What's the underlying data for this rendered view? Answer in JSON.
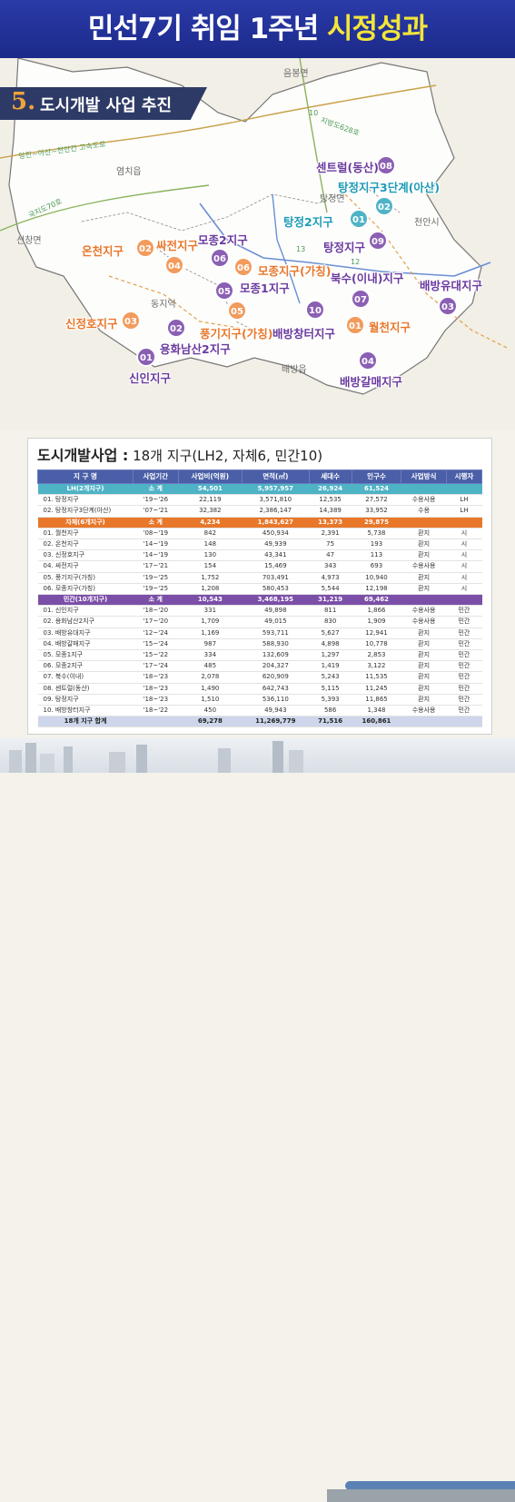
{
  "banner": {
    "title_part1": "민선7기 취임 1주년 ",
    "title_part2": "시정성과"
  },
  "section": {
    "number": "5.",
    "title": "도시개발 사업 추진"
  },
  "map": {
    "places": [
      "음봉면",
      "염치읍",
      "탕정면",
      "천안시",
      "신창면",
      "동지역",
      "배방읍"
    ],
    "roads": [
      "당진~아산~천안간 고속도로",
      "지방도628호",
      "국지도70호",
      "12",
      "13",
      "10"
    ],
    "markers": [
      {
        "num": "08",
        "label": "센트럴(동산)",
        "color": "p"
      },
      {
        "num": "02",
        "label": "탕정지구3단계(아산)",
        "color": "t"
      },
      {
        "num": "01",
        "label": "탕정2지구",
        "color": "t"
      },
      {
        "num": "09",
        "label": "탕정지구",
        "color": "p"
      },
      {
        "num": "02",
        "label": "온천지구",
        "color": "o"
      },
      {
        "num": "04",
        "label": "싸전지구",
        "color": "o"
      },
      {
        "num": "06",
        "label": "모종2지구",
        "color": "p"
      },
      {
        "num": "06",
        "label": "모종지구(가칭)",
        "color": "o"
      },
      {
        "num": "05",
        "label": "모종1지구",
        "color": "p"
      },
      {
        "num": "07",
        "label": "북수(이내)지구",
        "color": "p"
      },
      {
        "num": "03",
        "label": "배방유대지구",
        "color": "p"
      },
      {
        "num": "05",
        "label": "풍기지구(가칭)",
        "color": "o"
      },
      {
        "num": "10",
        "label": "배방창터지구",
        "color": "p"
      },
      {
        "num": "01",
        "label": "월천지구",
        "color": "o"
      },
      {
        "num": "03",
        "label": "신정호지구",
        "color": "o"
      },
      {
        "num": "02",
        "label": "용화남산2지구",
        "color": "p"
      },
      {
        "num": "01",
        "label": "신인지구",
        "color": "p"
      },
      {
        "num": "04",
        "label": "배방갈매지구",
        "color": "p"
      }
    ]
  },
  "panel": {
    "title_bold": "도시개발사업 :",
    "title_rest": " 18개 지구(LH2, 자체6, 민간10)"
  },
  "table": {
    "headers": [
      "지 구 명",
      "사업기간",
      "사업비(억원)",
      "면적(㎡)",
      "세대수",
      "인구수",
      "사업방식",
      "시행자"
    ],
    "lh_subtotal": [
      "LH(2개지구)",
      "소 계",
      "54,501",
      "5,957,957",
      "26,924",
      "61,524",
      "",
      ""
    ],
    "lh_rows": [
      [
        "01. 탕정지구",
        "'19~'26",
        "22,119",
        "3,571,810",
        "12,535",
        "27,572",
        "수용사용",
        "LH"
      ],
      [
        "02. 탕정지구3단계(아산)",
        "'07~'21",
        "32,382",
        "2,386,147",
        "14,389",
        "33,952",
        "수용",
        "LH"
      ]
    ],
    "gov_subtotal": [
      "자체(6개지구)",
      "소 계",
      "4,234",
      "1,843,627",
      "13,373",
      "29,875",
      "",
      ""
    ],
    "gov_rows": [
      [
        "01. 월천지구",
        "'08~'19",
        "842",
        "450,934",
        "2,391",
        "5,738",
        "환지",
        "시"
      ],
      [
        "02. 온천지구",
        "'14~'19",
        "148",
        "49,939",
        "75",
        "193",
        "환지",
        "시"
      ],
      [
        "03. 신정호지구",
        "'14~'19",
        "130",
        "43,341",
        "47",
        "113",
        "환지",
        "시"
      ],
      [
        "04. 싸전지구",
        "'17~'21",
        "154",
        "15,469",
        "343",
        "693",
        "수용사용",
        "시"
      ],
      [
        "05. 풍기지구(가칭)",
        "'19~'25",
        "1,752",
        "703,491",
        "4,973",
        "10,940",
        "환지",
        "시"
      ],
      [
        "06. 모종지구(가칭)",
        "'19~'25",
        "1,208",
        "580,453",
        "5,544",
        "12,198",
        "환지",
        "시"
      ]
    ],
    "priv_subtotal": [
      "민간(10개지구)",
      "소 계",
      "10,543",
      "3,468,195",
      "31,219",
      "69,462",
      "",
      ""
    ],
    "priv_rows": [
      [
        "01. 신인지구",
        "'18~'20",
        "331",
        "49,898",
        "811",
        "1,866",
        "수용사용",
        "민간"
      ],
      [
        "02. 용화남산2지구",
        "'17~'20",
        "1,709",
        "49,015",
        "830",
        "1,909",
        "수용사용",
        "민간"
      ],
      [
        "03. 배방유대지구",
        "'12~'24",
        "1,169",
        "593,711",
        "5,627",
        "12,941",
        "환지",
        "민간"
      ],
      [
        "04. 배방갈매지구",
        "'15~'24",
        "987",
        "588,930",
        "4,898",
        "10,778",
        "환지",
        "민간"
      ],
      [
        "05. 모종1지구",
        "'15~'22",
        "334",
        "132,609",
        "1,297",
        "2,853",
        "환지",
        "민간"
      ],
      [
        "06. 모종2지구",
        "'17~'24",
        "485",
        "204,327",
        "1,419",
        "3,122",
        "환지",
        "민간"
      ],
      [
        "07. 북수(이내)",
        "'18~'23",
        "2,078",
        "620,909",
        "5,243",
        "11,535",
        "환지",
        "민간"
      ],
      [
        "08. 센트럴(동산)",
        "'18~'23",
        "1,490",
        "642,743",
        "5,115",
        "11,245",
        "환지",
        "민간"
      ],
      [
        "09. 탕정지구",
        "'18~'23",
        "1,510",
        "536,110",
        "5,393",
        "11,865",
        "환지",
        "민간"
      ],
      [
        "10. 배방창터지구",
        "'18~'22",
        "450",
        "49,943",
        "586",
        "1,348",
        "수용사용",
        "민간"
      ]
    ],
    "total": [
      "18개 지구 합계",
      "",
      "69,278",
      "11,269,779",
      "71,516",
      "160,861",
      "",
      ""
    ]
  }
}
